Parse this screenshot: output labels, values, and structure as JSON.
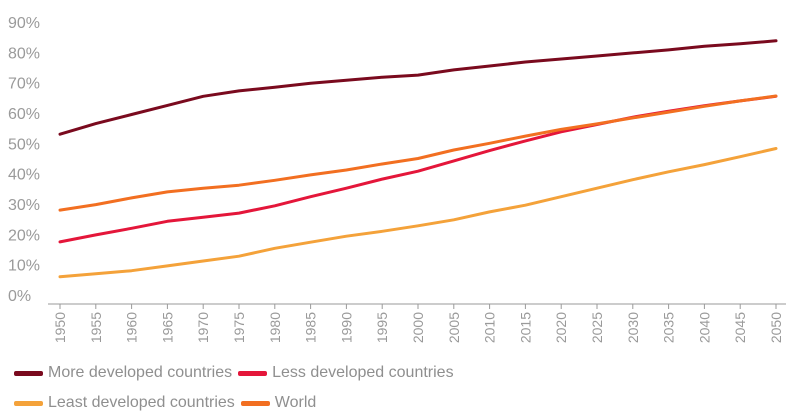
{
  "chart_data": {
    "type": "line",
    "x": [
      1950,
      1955,
      1960,
      1965,
      1970,
      1975,
      1980,
      1985,
      1990,
      1995,
      2000,
      2005,
      2010,
      2015,
      2020,
      2025,
      2030,
      2035,
      2040,
      2045,
      2050
    ],
    "y_ticks": [
      "0%",
      "10%",
      "20%",
      "30%",
      "40%",
      "50%",
      "60%",
      "70%",
      "80%",
      "90%"
    ],
    "ylim": [
      0,
      90
    ],
    "grid": false,
    "legend_position": "bottom",
    "series": [
      {
        "name": "More developed countries",
        "color": "#7a0a1e",
        "values": [
          53,
          56.5,
          59.5,
          62.5,
          65.5,
          67.3,
          68.5,
          69.8,
          70.8,
          71.8,
          72.5,
          74.2,
          75.5,
          76.8,
          77.8,
          78.8,
          79.8,
          80.8,
          82,
          82.8,
          83.8
        ]
      },
      {
        "name": "Less developed countries",
        "color": "#e4163a",
        "values": [
          17.5,
          19.8,
          22,
          24.3,
          25.6,
          27,
          29.4,
          32.4,
          35.2,
          38.2,
          40.8,
          44.2,
          47.6,
          50.8,
          53.8,
          56.2,
          58.6,
          60.6,
          62.4,
          64,
          65.5
        ]
      },
      {
        "name": "Least developed countries",
        "color": "#f4a23a",
        "values": [
          6,
          7,
          8,
          9.6,
          11.2,
          12.8,
          15.4,
          17.4,
          19.4,
          21,
          22.8,
          24.8,
          27.4,
          29.6,
          32.4,
          35.2,
          38,
          40.6,
          43,
          45.6,
          48.3
        ]
      },
      {
        "name": "World",
        "color": "#f26f21",
        "values": [
          28,
          29.8,
          32,
          34,
          35.2,
          36.2,
          37.8,
          39.6,
          41.2,
          43.2,
          45,
          47.8,
          50,
          52.4,
          54.6,
          56.4,
          58.4,
          60.3,
          62.2,
          64,
          65.6
        ]
      }
    ]
  }
}
